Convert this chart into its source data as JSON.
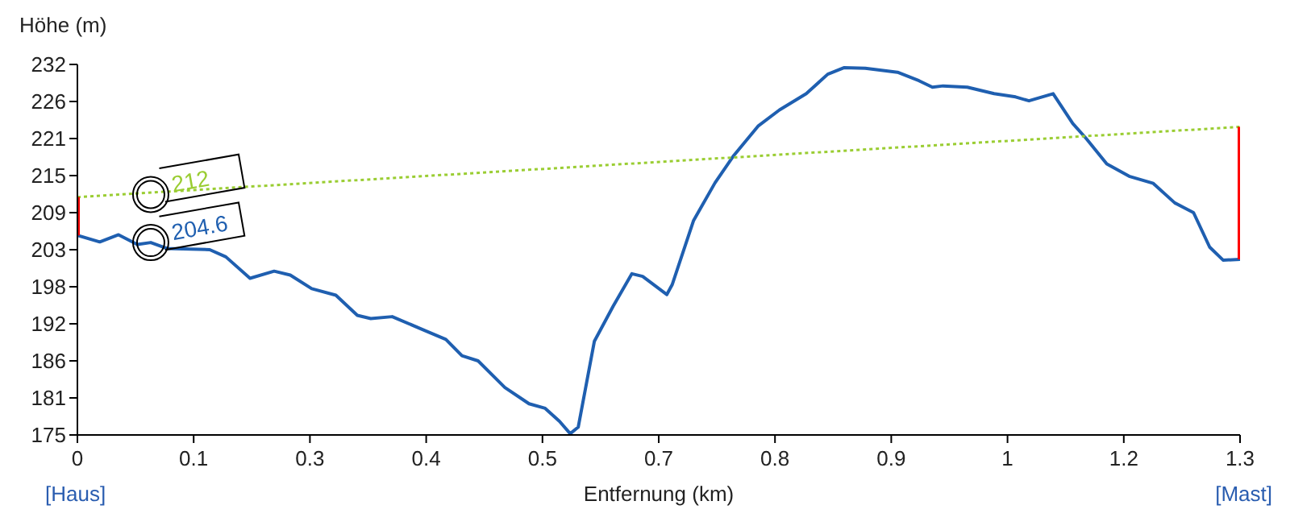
{
  "chart_data": {
    "type": "line",
    "xlabel": "Entfernung (km)",
    "ylabel": "Höhe (m)",
    "xlim": [
      0,
      1.3
    ],
    "ylim": [
      175,
      232
    ],
    "xticks": [
      0,
      {
        "value": 0.13,
        "label": "0.1"
      },
      {
        "value": 0.26,
        "label": "0.3"
      },
      {
        "value": 0.39,
        "label": "0.4"
      },
      {
        "value": 0.52,
        "label": "0.5"
      },
      {
        "value": 0.65,
        "label": "0.7"
      },
      {
        "value": 0.78,
        "label": "0.8"
      },
      {
        "value": 0.91,
        "label": "0.9"
      },
      {
        "value": 1.04,
        "label": "1"
      },
      {
        "value": 1.17,
        "label": "1.2"
      },
      1.3
    ],
    "yticks": [
      175,
      {
        "value": 180.7,
        "label": "181"
      },
      {
        "value": 186.4,
        "label": "186"
      },
      {
        "value": 192.1,
        "label": "192"
      },
      {
        "value": 197.8,
        "label": "198"
      },
      {
        "value": 203.5,
        "label": "203"
      },
      {
        "value": 209.2,
        "label": "209"
      },
      {
        "value": 214.9,
        "label": "215"
      },
      {
        "value": 220.6,
        "label": "221"
      },
      {
        "value": 226.3,
        "label": "226"
      },
      232
    ],
    "grid": false,
    "legend": false,
    "marker": "none",
    "series": [
      {
        "color": "#1f5fb0",
        "x": [
          0,
          0.025,
          0.046,
          0.067,
          0.082,
          0.1,
          0.148,
          0.166,
          0.193,
          0.22,
          0.238,
          0.262,
          0.289,
          0.313,
          0.328,
          0.352,
          0.388,
          0.412,
          0.43,
          0.448,
          0.478,
          0.505,
          0.523,
          0.539,
          0.551,
          0.56,
          0.578,
          0.599,
          0.62,
          0.632,
          0.659,
          0.665,
          0.689,
          0.713,
          0.734,
          0.761,
          0.785,
          0.815,
          0.839,
          0.857,
          0.881,
          0.917,
          0.941,
          0.956,
          0.968,
          0.995,
          1.025,
          1.049,
          1.064,
          1.091,
          1.113,
          1.128,
          1.151,
          1.176,
          1.203,
          1.227,
          1.248,
          1.266,
          1.281,
          1.3
        ],
        "values": [
          205.7,
          204.7,
          205.8,
          204.3,
          204.6,
          203.7,
          203.5,
          202.4,
          199.1,
          200.2,
          199.6,
          197.5,
          196.5,
          193.4,
          192.9,
          193.2,
          191.1,
          189.7,
          187.2,
          186.4,
          182.3,
          179.8,
          179.1,
          177.1,
          175.2,
          176.2,
          189.4,
          194.8,
          199.8,
          199.4,
          196.6,
          198.1,
          208,
          213.8,
          218,
          222.5,
          225,
          227.5,
          230.5,
          231.5,
          231.4,
          230.8,
          229.5,
          228.5,
          228.7,
          228.5,
          227.5,
          227,
          226.4,
          227.5,
          222.9,
          220.6,
          216.7,
          214.8,
          213.7,
          210.7,
          209.2,
          203.9,
          201.9,
          202
        ]
      },
      {
        "color": "#9acd32",
        "line_style": "dotted",
        "x": [
          0,
          1.3
        ],
        "values": [
          211.6,
          222.4
        ]
      },
      {
        "color": "#ff0000",
        "x": [
          0,
          0
        ],
        "values": [
          205.7,
          211.6
        ]
      },
      {
        "color": "#ff0000",
        "x": [
          1.3,
          1.3
        ],
        "values": [
          202,
          222.4
        ]
      }
    ],
    "annotations": [
      {
        "text": "212",
        "x": 0.082,
        "y": 212
      },
      {
        "text": "204.6",
        "x": 0.082,
        "y": 204.6
      },
      "[Haus]",
      "[Mast]"
    ]
  }
}
